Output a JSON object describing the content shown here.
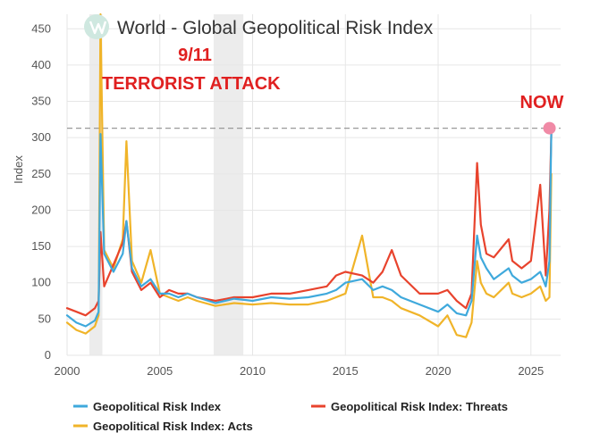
{
  "title": "World - Global Geopolitical Risk Index",
  "annotations": {
    "event_date": "9/11",
    "event_label": "TERRORIST ATTACK",
    "now_label": "NOW"
  },
  "colors": {
    "gpr": "#3fa9dc",
    "threats": "#e8432d",
    "acts": "#f0b429",
    "annotation": "#e02020",
    "now_marker": "#f08aa6",
    "reference_line": "#999999",
    "recession_band": "#ececec",
    "grid": "#e6e6e6",
    "logo": "#cfe8e0"
  },
  "chart_data": {
    "type": "line",
    "title": "World - Global Geopolitical Risk Index",
    "xlabel": "",
    "ylabel": "Index",
    "xlim": [
      2000,
      2026.6
    ],
    "ylim": [
      0,
      470
    ],
    "xticks": [
      2000,
      2005,
      2010,
      2015,
      2020,
      2025
    ],
    "xtick_labels": [
      "2000",
      "2005",
      "2010",
      "2015",
      "2020",
      "2025"
    ],
    "yticks": [
      0,
      50,
      100,
      150,
      200,
      250,
      300,
      350,
      400,
      450
    ],
    "ytick_labels": [
      "0",
      "50",
      "100",
      "150",
      "200",
      "250",
      "300",
      "350",
      "400",
      "450"
    ],
    "grid": true,
    "legend_position": "bottom",
    "shaded_periods": [
      [
        2001.2,
        2001.9
      ],
      [
        2007.9,
        2009.5
      ]
    ],
    "reference_line_y": 313,
    "series": [
      {
        "name": "Geopolitical Risk Index",
        "color": "#3fa9dc",
        "x": [
          2000.0,
          2000.5,
          2001.0,
          2001.5,
          2001.7,
          2001.8,
          2002.0,
          2002.5,
          2003.0,
          2003.2,
          2003.5,
          2004.0,
          2004.5,
          2005.0,
          2005.5,
          2006.0,
          2006.5,
          2007.0,
          2008.0,
          2009.0,
          2010.0,
          2011.0,
          2012.0,
          2013.0,
          2014.0,
          2014.5,
          2015.0,
          2015.9,
          2016.5,
          2017.0,
          2017.5,
          2018.0,
          2019.0,
          2020.0,
          2020.5,
          2021.0,
          2021.5,
          2021.8,
          2022.1,
          2022.3,
          2022.6,
          2023.0,
          2023.8,
          2024.0,
          2024.5,
          2025.0,
          2025.5,
          2025.8,
          2026.0,
          2026.1
        ],
        "y": [
          55,
          45,
          40,
          48,
          60,
          305,
          140,
          115,
          140,
          185,
          120,
          95,
          105,
          85,
          85,
          80,
          85,
          80,
          72,
          78,
          75,
          80,
          78,
          80,
          85,
          90,
          100,
          105,
          90,
          95,
          90,
          80,
          70,
          60,
          70,
          58,
          55,
          75,
          165,
          135,
          120,
          105,
          120,
          110,
          100,
          105,
          115,
          95,
          130,
          310
        ]
      },
      {
        "name": "Geopolitical Risk Index: Threats",
        "color": "#e8432d",
        "x": [
          2000.0,
          2000.5,
          2001.0,
          2001.5,
          2001.7,
          2001.8,
          2002.0,
          2002.5,
          2003.0,
          2003.2,
          2003.5,
          2004.0,
          2004.5,
          2005.0,
          2005.5,
          2006.0,
          2006.5,
          2007.0,
          2008.0,
          2009.0,
          2010.0,
          2011.0,
          2012.0,
          2013.0,
          2014.0,
          2014.5,
          2015.0,
          2015.9,
          2016.5,
          2017.0,
          2017.5,
          2018.0,
          2019.0,
          2020.0,
          2020.5,
          2021.0,
          2021.5,
          2021.8,
          2022.1,
          2022.3,
          2022.6,
          2023.0,
          2023.8,
          2024.0,
          2024.5,
          2025.0,
          2025.5,
          2025.8,
          2026.0,
          2026.1
        ],
        "y": [
          65,
          60,
          55,
          65,
          75,
          170,
          95,
          125,
          155,
          185,
          115,
          90,
          100,
          80,
          90,
          85,
          85,
          80,
          75,
          80,
          80,
          85,
          85,
          90,
          95,
          110,
          115,
          110,
          100,
          115,
          145,
          110,
          85,
          85,
          90,
          75,
          65,
          85,
          265,
          180,
          140,
          135,
          160,
          130,
          120,
          130,
          235,
          110,
          200,
          305
        ]
      },
      {
        "name": "Geopolitical Risk Index: Acts",
        "color": "#f0b429",
        "x": [
          2000.0,
          2000.5,
          2001.0,
          2001.5,
          2001.7,
          2001.8,
          2002.0,
          2002.5,
          2003.0,
          2003.2,
          2003.5,
          2004.0,
          2004.5,
          2005.0,
          2005.5,
          2006.0,
          2006.5,
          2007.0,
          2008.0,
          2009.0,
          2010.0,
          2011.0,
          2012.0,
          2013.0,
          2014.0,
          2014.5,
          2015.0,
          2015.9,
          2016.5,
          2017.0,
          2017.5,
          2018.0,
          2019.0,
          2020.0,
          2020.5,
          2021.0,
          2021.5,
          2021.8,
          2022.1,
          2022.3,
          2022.6,
          2023.0,
          2023.8,
          2024.0,
          2024.5,
          2025.0,
          2025.5,
          2025.8,
          2026.0,
          2026.1
        ],
        "y": [
          45,
          35,
          30,
          40,
          55,
          470,
          145,
          120,
          160,
          295,
          130,
          100,
          145,
          85,
          80,
          75,
          80,
          75,
          68,
          72,
          70,
          72,
          70,
          70,
          75,
          80,
          85,
          165,
          80,
          80,
          75,
          65,
          55,
          40,
          55,
          28,
          25,
          45,
          130,
          100,
          85,
          80,
          100,
          85,
          80,
          85,
          95,
          75,
          80,
          250
        ]
      }
    ],
    "now_point": {
      "x": 2026.0,
      "y": 313
    }
  }
}
